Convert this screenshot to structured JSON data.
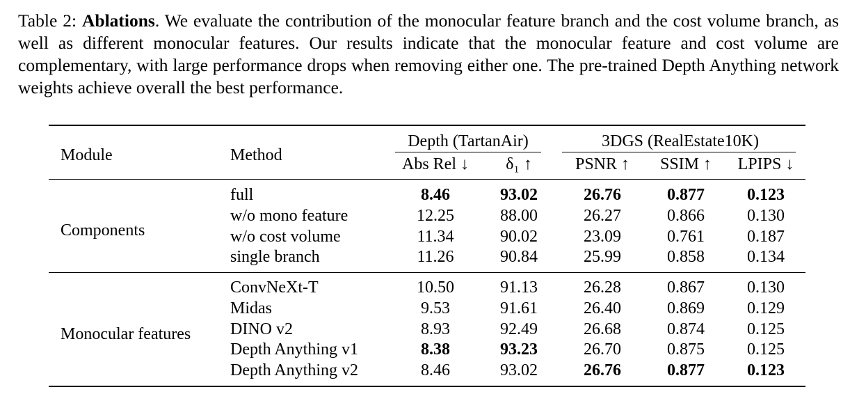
{
  "caption": {
    "label": "Table 2:",
    "title": "Ablations",
    "text": ". We evaluate the contribution of the monocular feature branch and the cost volume branch, as well as different monocular features. Our results indicate that the monocular feature and cost volume are complementary, with large performance drops when removing either one. The pre-trained Depth Anything network weights achieve overall the best performance."
  },
  "header": {
    "module": "Module",
    "method": "Method",
    "group_depth": "Depth (TartanAir)",
    "group_3dgs": "3DGS (RealEstate10K)",
    "cols": [
      "Abs Rel ↓",
      "δ₁ ↑",
      "PSNR ↑",
      "SSIM ↑",
      "LPIPS ↓"
    ]
  },
  "groups": [
    {
      "module": "Components",
      "rows": [
        {
          "method": "full",
          "values": [
            "8.46",
            "93.02",
            "26.76",
            "0.877",
            "0.123"
          ],
          "bold": [
            true,
            true,
            true,
            true,
            true
          ]
        },
        {
          "method": "w/o mono feature",
          "values": [
            "12.25",
            "88.00",
            "26.27",
            "0.866",
            "0.130"
          ],
          "bold": [
            false,
            false,
            false,
            false,
            false
          ]
        },
        {
          "method": "w/o cost volume",
          "values": [
            "11.34",
            "90.02",
            "23.09",
            "0.761",
            "0.187"
          ],
          "bold": [
            false,
            false,
            false,
            false,
            false
          ]
        },
        {
          "method": "single branch",
          "values": [
            "11.26",
            "90.84",
            "25.99",
            "0.858",
            "0.134"
          ],
          "bold": [
            false,
            false,
            false,
            false,
            false
          ]
        }
      ]
    },
    {
      "module": "Monocular features",
      "rows": [
        {
          "method": "ConvNeXt-T",
          "values": [
            "10.50",
            "91.13",
            "26.28",
            "0.867",
            "0.130"
          ],
          "bold": [
            false,
            false,
            false,
            false,
            false
          ]
        },
        {
          "method": "Midas",
          "values": [
            "9.53",
            "91.61",
            "26.40",
            "0.869",
            "0.129"
          ],
          "bold": [
            false,
            false,
            false,
            false,
            false
          ]
        },
        {
          "method": "DINO v2",
          "values": [
            "8.93",
            "92.49",
            "26.68",
            "0.874",
            "0.125"
          ],
          "bold": [
            false,
            false,
            false,
            false,
            false
          ]
        },
        {
          "method": "Depth Anything v1",
          "values": [
            "8.38",
            "93.23",
            "26.70",
            "0.875",
            "0.125"
          ],
          "bold": [
            true,
            true,
            false,
            false,
            false
          ]
        },
        {
          "method": "Depth Anything v2",
          "values": [
            "8.46",
            "93.02",
            "26.76",
            "0.877",
            "0.123"
          ],
          "bold": [
            false,
            false,
            true,
            true,
            true
          ]
        }
      ]
    }
  ]
}
